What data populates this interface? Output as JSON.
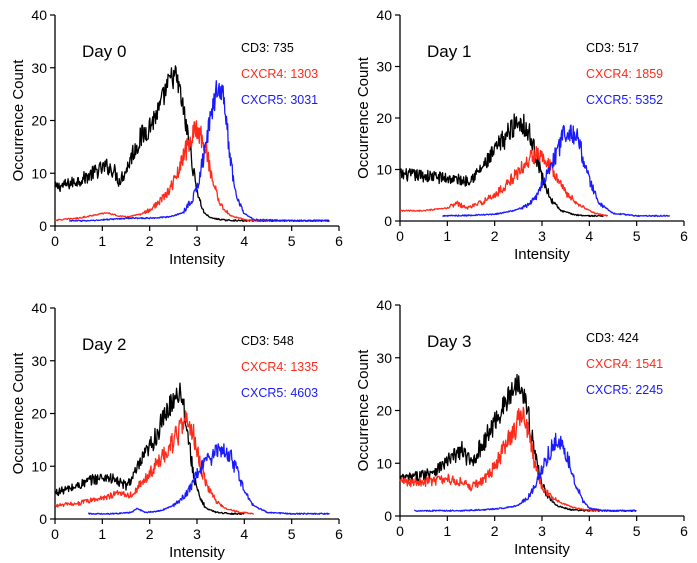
{
  "chart_data": [
    {
      "type": "line",
      "title": "Day 0",
      "xlabel": "Intensity",
      "ylabel": "Occurrence Count",
      "xlim": [
        0,
        6
      ],
      "ylim": [
        0,
        40
      ],
      "xticks": [
        "0",
        "1",
        "2",
        "3",
        "4",
        "5",
        "6"
      ],
      "yticks": [
        "0",
        "10",
        "20",
        "30",
        "40"
      ],
      "grid": false,
      "annotations": [
        {
          "label": "CD3: 735",
          "color": "#000000"
        },
        {
          "label": "CXCR4: 1303",
          "color": "#ff2a1a"
        },
        {
          "label": "CXCR5: 3031",
          "color": "#1a1aff"
        }
      ],
      "series": [
        {
          "color": "#000000",
          "x": [
            0,
            0.3,
            0.6,
            0.9,
            1.1,
            1.25,
            1.35,
            1.5,
            1.65,
            1.8,
            2.0,
            2.2,
            2.35,
            2.45,
            2.55,
            2.65,
            2.75,
            2.85,
            2.95,
            3.05,
            3.15,
            3.3,
            3.6,
            4.0,
            5.0,
            5.8
          ],
          "y": [
            7.3,
            8.0,
            9.0,
            10.5,
            11.3,
            10.5,
            8.5,
            10.5,
            14.0,
            16.5,
            19.0,
            22.0,
            26.0,
            28.0,
            28.5,
            25.0,
            20.0,
            15.0,
            9.0,
            5.0,
            2.5,
            1.5,
            1.1,
            1.0,
            1.0,
            1.0
          ]
        },
        {
          "color": "#ff2a1a",
          "x": [
            0,
            0.5,
            0.9,
            1.1,
            1.3,
            1.5,
            1.8,
            2.0,
            2.2,
            2.4,
            2.6,
            2.75,
            2.9,
            3.0,
            3.1,
            3.2,
            3.35,
            3.5,
            3.7,
            4.0,
            4.3,
            4.5
          ],
          "y": [
            1.1,
            1.5,
            2.2,
            2.5,
            2.0,
            1.7,
            2.2,
            3.0,
            4.5,
            6.5,
            10.0,
            14.0,
            17.0,
            18.5,
            17.0,
            14.0,
            8.0,
            4.0,
            2.0,
            1.2,
            1.0,
            1.0
          ]
        },
        {
          "color": "#1a1aff",
          "x": [
            0.3,
            0.8,
            1.2,
            1.6,
            2.0,
            2.4,
            2.7,
            2.9,
            3.05,
            3.2,
            3.35,
            3.45,
            3.55,
            3.65,
            3.75,
            3.85,
            4.0,
            4.2,
            5.0,
            5.8
          ],
          "y": [
            1.0,
            1.0,
            1.3,
            1.5,
            1.5,
            1.7,
            2.5,
            5.0,
            9.0,
            16.0,
            23.0,
            27.0,
            25.0,
            17.0,
            10.0,
            5.0,
            2.5,
            1.2,
            1.0,
            1.0
          ]
        }
      ]
    },
    {
      "type": "line",
      "title": "Day 1",
      "xlabel": "Intensity",
      "ylabel": "Occurrence Count",
      "xlim": [
        0,
        6
      ],
      "ylim": [
        0,
        40
      ],
      "xticks": [
        "0",
        "1",
        "2",
        "3",
        "4",
        "5",
        "6"
      ],
      "yticks": [
        "0",
        "10",
        "20",
        "30",
        "40"
      ],
      "grid": false,
      "annotations": [
        {
          "label": "CD3: 517",
          "color": "#000000"
        },
        {
          "label": "CXCR4: 1859",
          "color": "#ff2a1a"
        },
        {
          "label": "CXCR5: 5352",
          "color": "#1a1aff"
        }
      ],
      "series": [
        {
          "color": "#000000",
          "x": [
            0,
            0.5,
            1.0,
            1.4,
            1.6,
            1.8,
            2.0,
            2.2,
            2.4,
            2.5,
            2.6,
            2.75,
            2.9,
            3.0,
            3.2,
            3.4,
            3.7,
            4.0,
            4.3
          ],
          "y": [
            9.0,
            8.8,
            8.3,
            7.8,
            9.0,
            11.0,
            13.5,
            16.0,
            18.5,
            19.5,
            19.0,
            16.5,
            12.0,
            8.5,
            4.0,
            2.0,
            1.2,
            1.0,
            1.0
          ]
        },
        {
          "color": "#ff2a1a",
          "x": [
            0,
            0.5,
            1.0,
            1.2,
            1.4,
            1.7,
            2.0,
            2.3,
            2.6,
            2.8,
            2.95,
            3.1,
            3.3,
            3.5,
            3.8,
            4.0,
            4.2,
            4.4
          ],
          "y": [
            2.0,
            2.0,
            2.5,
            3.5,
            2.5,
            3.5,
            5.0,
            7.5,
            10.5,
            12.5,
            13.5,
            12.0,
            9.0,
            5.5,
            3.0,
            2.0,
            1.3,
            1.0
          ]
        },
        {
          "color": "#1a1aff",
          "x": [
            0.9,
            1.5,
            2.0,
            2.4,
            2.7,
            2.9,
            3.1,
            3.3,
            3.45,
            3.55,
            3.7,
            3.85,
            4.0,
            4.2,
            4.5,
            5.0,
            5.7
          ],
          "y": [
            1.0,
            1.1,
            1.3,
            2.0,
            3.0,
            5.0,
            9.0,
            13.0,
            16.5,
            18.0,
            17.0,
            13.0,
            8.0,
            3.5,
            1.5,
            1.0,
            1.0
          ]
        }
      ]
    },
    {
      "type": "line",
      "title": "Day 2",
      "xlabel": "Intensity",
      "ylabel": "Occurrence Count",
      "xlim": [
        0,
        6
      ],
      "ylim": [
        0,
        40
      ],
      "xticks": [
        "0",
        "1",
        "2",
        "3",
        "4",
        "5",
        "6"
      ],
      "yticks": [
        "0",
        "10",
        "20",
        "30",
        "40"
      ],
      "grid": false,
      "annotations": [
        {
          "label": "CD3: 548",
          "color": "#000000"
        },
        {
          "label": "CXCR4: 1335",
          "color": "#ff2a1a"
        },
        {
          "label": "CXCR5: 4603",
          "color": "#1a1aff"
        }
      ],
      "series": [
        {
          "color": "#000000",
          "x": [
            0,
            0.4,
            0.8,
            1.1,
            1.3,
            1.5,
            1.65,
            1.8,
            2.0,
            2.2,
            2.4,
            2.55,
            2.65,
            2.75,
            2.85,
            2.95,
            3.05,
            3.2,
            3.4,
            3.7,
            4.0
          ],
          "y": [
            5.0,
            6.0,
            7.5,
            8.0,
            7.2,
            6.3,
            8.0,
            10.5,
            13.5,
            17.0,
            21.0,
            23.5,
            24.5,
            20.0,
            13.0,
            7.5,
            4.0,
            2.0,
            1.3,
            1.0,
            1.0
          ]
        },
        {
          "color": "#ff2a1a",
          "x": [
            0,
            0.5,
            1.0,
            1.4,
            1.6,
            1.8,
            2.0,
            2.2,
            2.4,
            2.6,
            2.75,
            2.9,
            3.0,
            3.1,
            3.25,
            3.4,
            3.6,
            3.9,
            4.2
          ],
          "y": [
            2.5,
            3.0,
            4.0,
            5.0,
            4.5,
            6.5,
            8.5,
            11.0,
            13.5,
            16.0,
            18.5,
            17.0,
            13.0,
            9.0,
            5.5,
            3.5,
            2.0,
            1.3,
            1.0
          ]
        },
        {
          "color": "#1a1aff",
          "x": [
            0.7,
            1.2,
            1.6,
            1.75,
            1.9,
            2.2,
            2.5,
            2.8,
            3.0,
            3.2,
            3.4,
            3.55,
            3.7,
            3.85,
            4.0,
            4.2,
            4.5,
            5.0,
            5.8
          ],
          "y": [
            1.0,
            1.0,
            1.2,
            2.0,
            1.2,
            1.5,
            2.5,
            5.0,
            8.5,
            11.0,
            12.5,
            13.0,
            12.0,
            9.0,
            5.5,
            2.5,
            1.2,
            1.0,
            1.0
          ]
        }
      ]
    },
    {
      "type": "line",
      "title": "Day 3",
      "xlabel": "Intensity",
      "ylabel": "Occurrence Count",
      "xlim": [
        0,
        6
      ],
      "ylim": [
        0,
        40
      ],
      "xticks": [
        "0",
        "1",
        "2",
        "3",
        "4",
        "5",
        "6"
      ],
      "yticks": [
        "0",
        "10",
        "20",
        "30",
        "40"
      ],
      "grid": false,
      "annotations": [
        {
          "label": "CD3: 424",
          "color": "#000000"
        },
        {
          "label": "CXCR4: 1541",
          "color": "#ff2a1a"
        },
        {
          "label": "CXCR5: 2245",
          "color": "#1a1aff"
        }
      ],
      "series": [
        {
          "color": "#000000",
          "x": [
            0,
            0.4,
            0.8,
            1.1,
            1.3,
            1.5,
            1.7,
            1.9,
            2.1,
            2.3,
            2.45,
            2.55,
            2.65,
            2.75,
            2.85,
            2.95,
            3.1,
            3.3,
            3.6,
            4.0,
            5.0
          ],
          "y": [
            7.0,
            7.5,
            9.0,
            11.0,
            12.5,
            10.0,
            13.0,
            16.0,
            19.5,
            22.5,
            25.0,
            25.5,
            22.0,
            17.0,
            12.0,
            7.5,
            4.0,
            2.0,
            1.2,
            1.0,
            1.0
          ]
        },
        {
          "color": "#ff2a1a",
          "x": [
            0,
            0.5,
            1.0,
            1.3,
            1.5,
            1.7,
            1.9,
            2.1,
            2.3,
            2.45,
            2.55,
            2.65,
            2.75,
            2.85,
            3.0,
            3.2,
            3.4,
            3.6,
            3.9,
            4.2
          ],
          "y": [
            6.5,
            6.5,
            7.0,
            6.5,
            5.5,
            6.5,
            8.0,
            11.0,
            14.5,
            17.0,
            19.0,
            18.0,
            14.0,
            9.5,
            5.5,
            3.5,
            2.5,
            1.8,
            1.2,
            1.0
          ]
        },
        {
          "color": "#1a1aff",
          "x": [
            0.3,
            0.8,
            1.3,
            1.8,
            2.2,
            2.5,
            2.7,
            2.9,
            3.05,
            3.2,
            3.3,
            3.4,
            3.55,
            3.7,
            3.85,
            4.0,
            4.3,
            5.0
          ],
          "y": [
            1.0,
            1.0,
            1.0,
            1.2,
            1.5,
            2.0,
            3.5,
            6.5,
            10.0,
            13.0,
            14.0,
            13.5,
            11.0,
            6.5,
            3.0,
            1.5,
            1.0,
            1.0
          ]
        }
      ]
    }
  ]
}
